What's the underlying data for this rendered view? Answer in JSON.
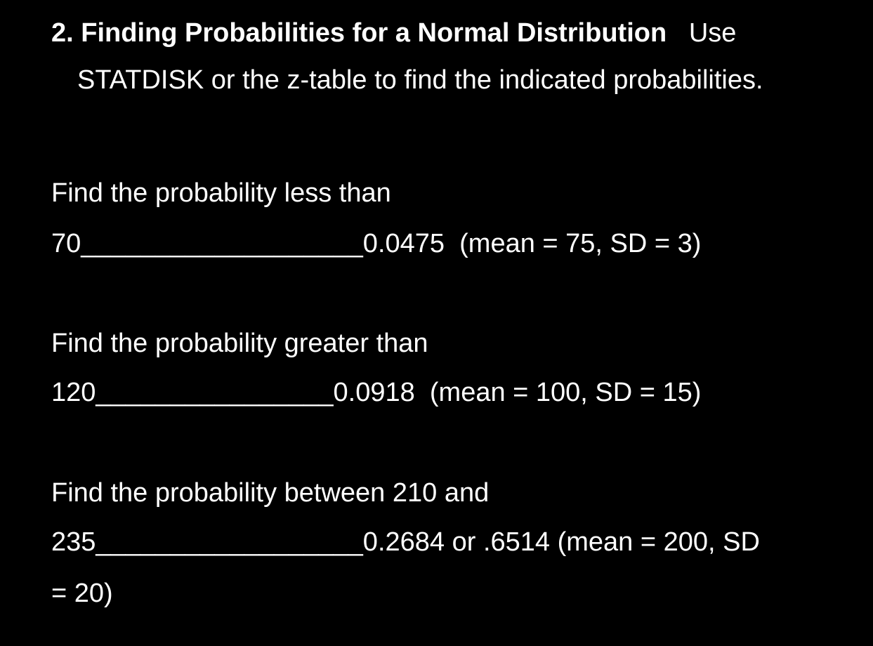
{
  "heading": {
    "title_bold": "2. Finding Probabilities for a Normal Distribution",
    "title_rest": "   Use",
    "continuation": "STATDISK or the z-table to find the indicated probabilities."
  },
  "problems": [
    {
      "prompt": "Find the probability less than",
      "answer_line": "70___________________0.0475  (mean = 75, SD = 3)"
    },
    {
      "prompt": "Find the probability greater than",
      "answer_line": "120________________0.0918  (mean = 100, SD = 15)"
    },
    {
      "prompt": "Find the probability between 210 and",
      "answer_line": "235__________________0.2684 or .6514 (mean = 200, SD",
      "continuation": "= 20)"
    }
  ]
}
